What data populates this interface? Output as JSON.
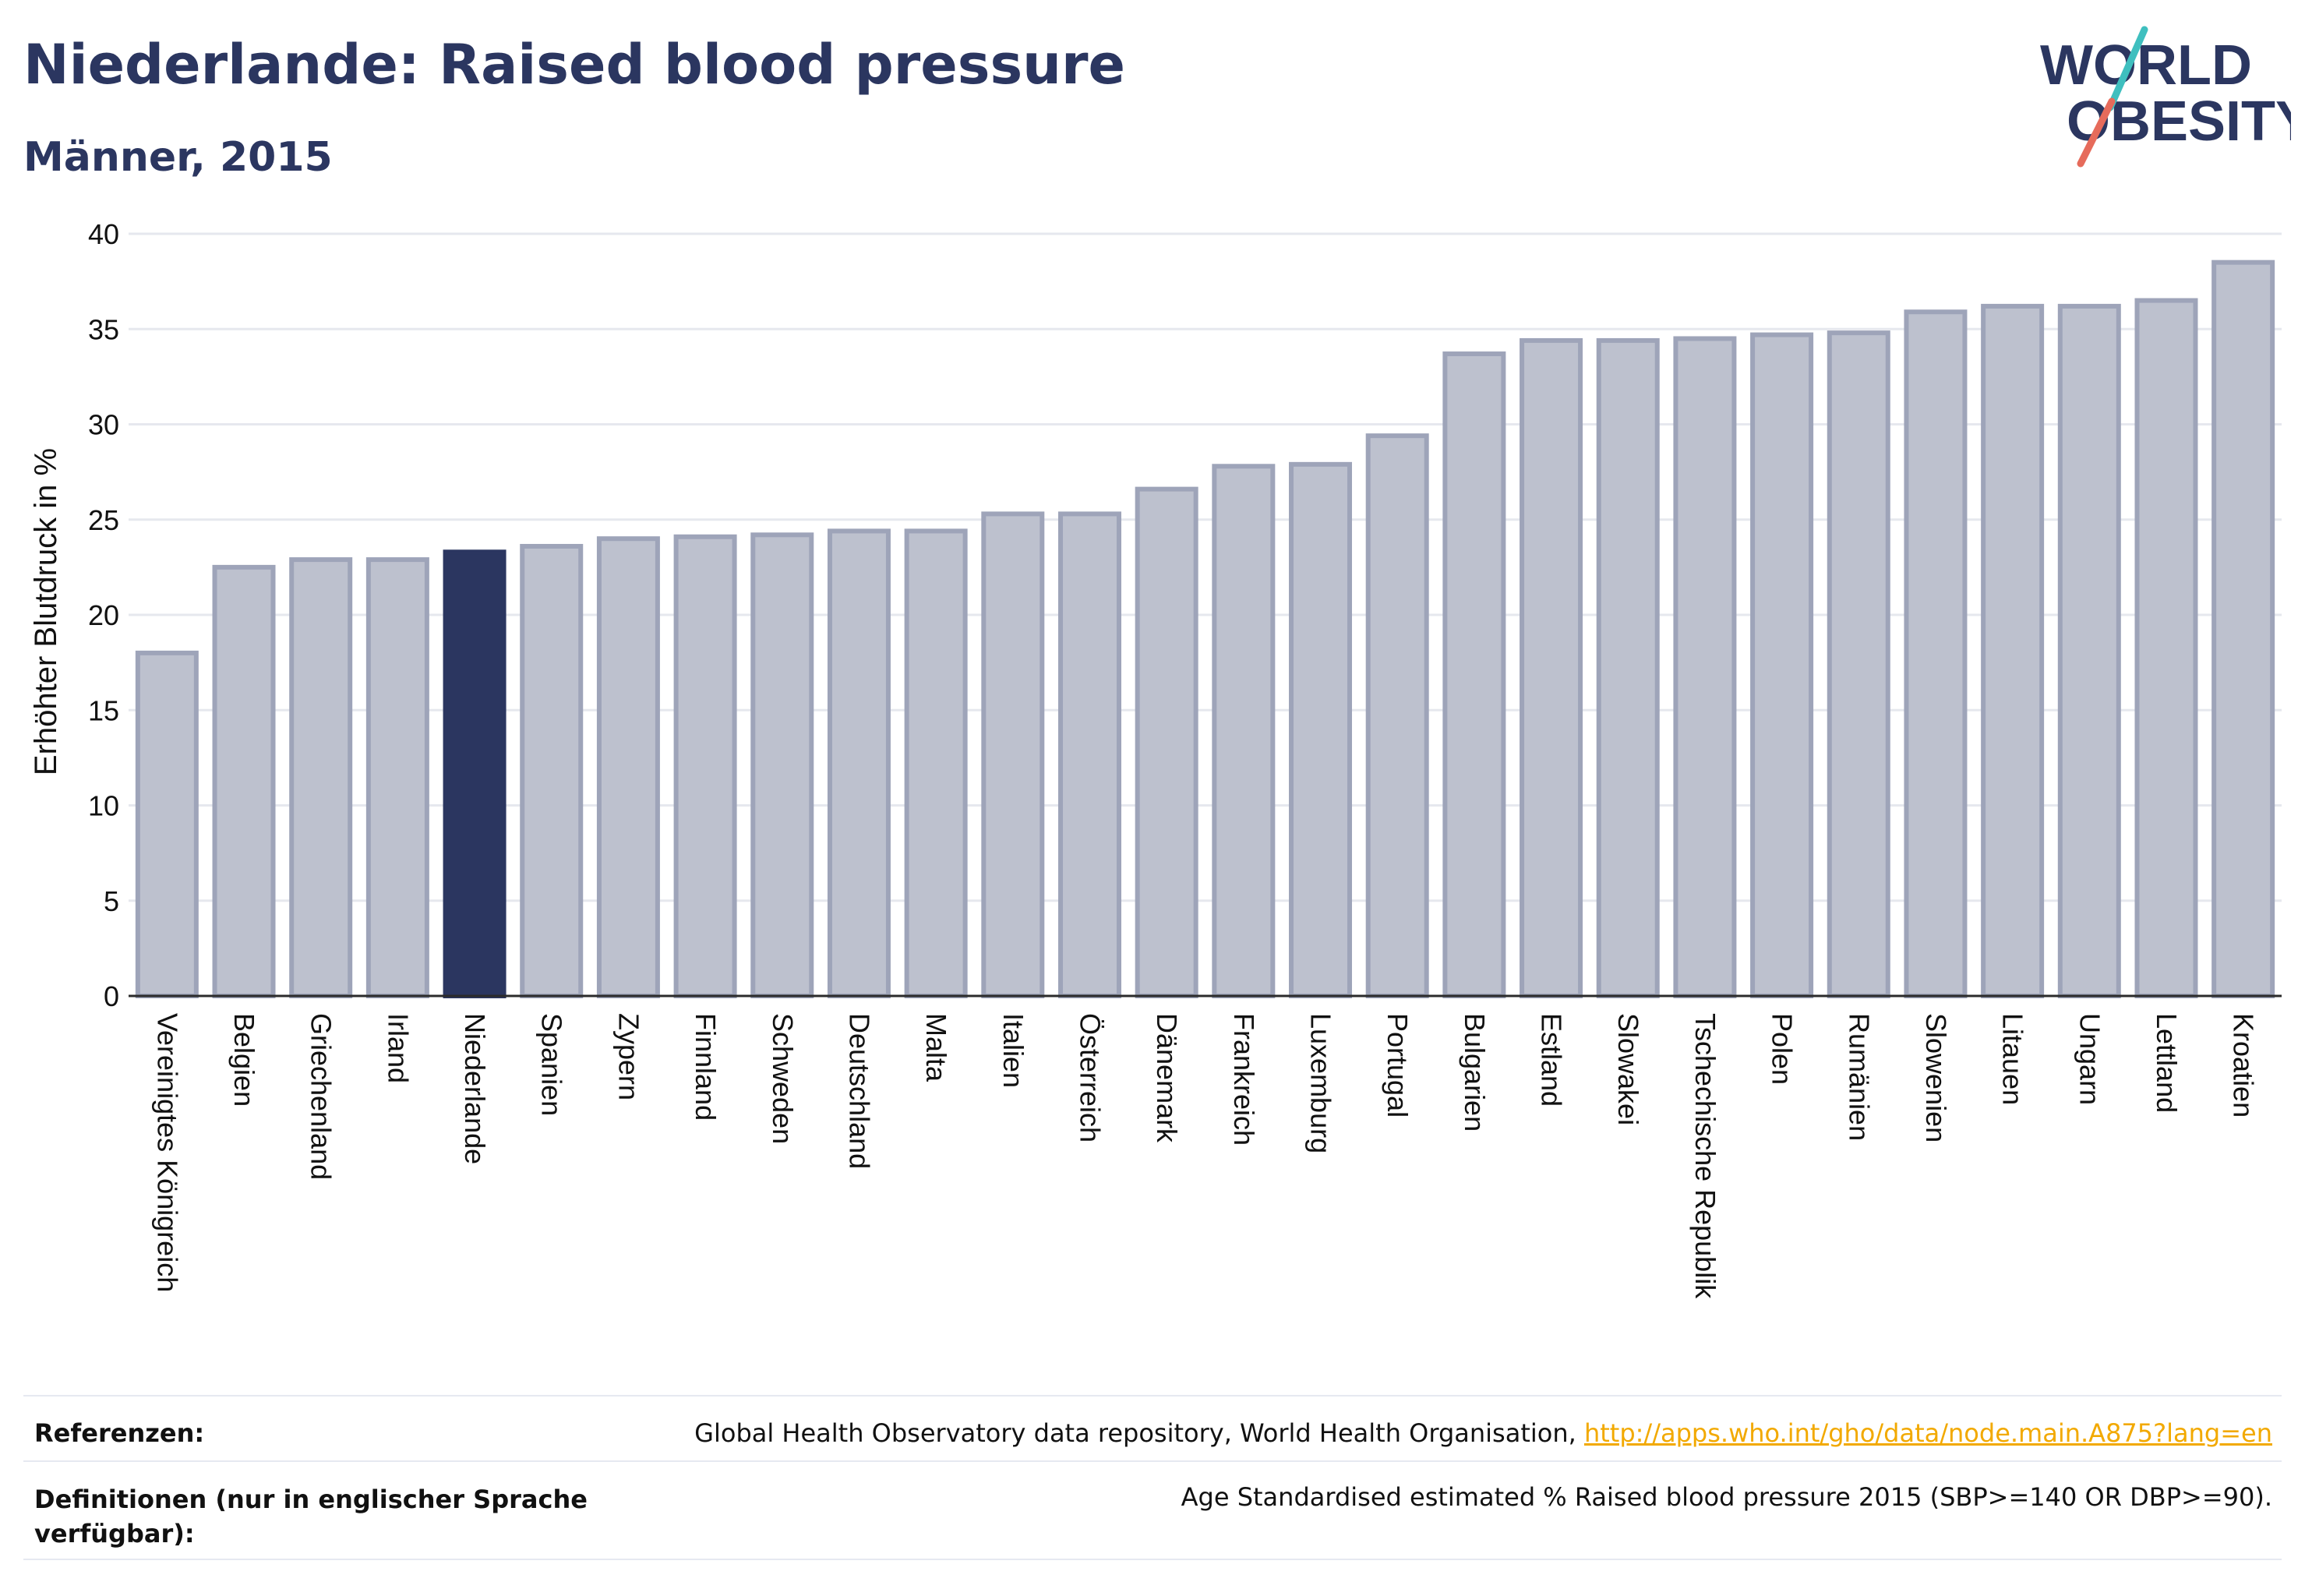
{
  "header": {
    "title": "Niederlande: Raised blood pressure",
    "subtitle": "Männer, 2015",
    "logo_line1": "WORLD",
    "logo_line2": "OBESITY"
  },
  "chart_data": {
    "type": "bar",
    "ylabel": "Erhöhter Blutdruck in %",
    "ylim": [
      0,
      40
    ],
    "yticks": [
      0,
      5,
      10,
      15,
      20,
      25,
      30,
      35,
      40
    ],
    "grid": true,
    "highlight": "Niederlande",
    "colors": {
      "bar": "#bdc1ce",
      "bar_border": "#9ea4b9",
      "highlight": "#2b3660",
      "grid": "#e6e8ee",
      "axis": "#2b2b2b"
    },
    "categories": [
      "Vereinigtes Königreich",
      "Belgien",
      "Griechenland",
      "Irland",
      "Niederlande",
      "Spanien",
      "Zypern",
      "Finnland",
      "Schweden",
      "Deutschland",
      "Malta",
      "Italien",
      "Österreich",
      "Dänemark",
      "Frankreich",
      "Luxemburg",
      "Portugal",
      "Bulgarien",
      "Estland",
      "Slowakei",
      "Tschechische Republik",
      "Polen",
      "Rumänien",
      "Slowenien",
      "Litauen",
      "Ungarn",
      "Lettland",
      "Kroatien"
    ],
    "values": [
      18.0,
      22.5,
      22.9,
      22.9,
      23.3,
      23.6,
      24.0,
      24.1,
      24.2,
      24.4,
      24.4,
      25.3,
      25.3,
      26.6,
      27.8,
      27.9,
      29.4,
      33.7,
      34.4,
      34.4,
      34.5,
      34.7,
      34.8,
      35.9,
      36.2,
      36.2,
      36.5,
      38.5
    ]
  },
  "footer": {
    "ref_label": "Referenzen:",
    "ref_text": "Global Health Observatory data repository, World Health Organisation, ",
    "ref_link": "http://apps.who.int/gho/data/node.main.A875?lang=en",
    "def_label": "Definitionen (nur in englischer Sprache verfügbar):",
    "def_text": "Age Standardised estimated % Raised blood pressure 2015 (SBP>=140 OR DBP>=90)."
  }
}
